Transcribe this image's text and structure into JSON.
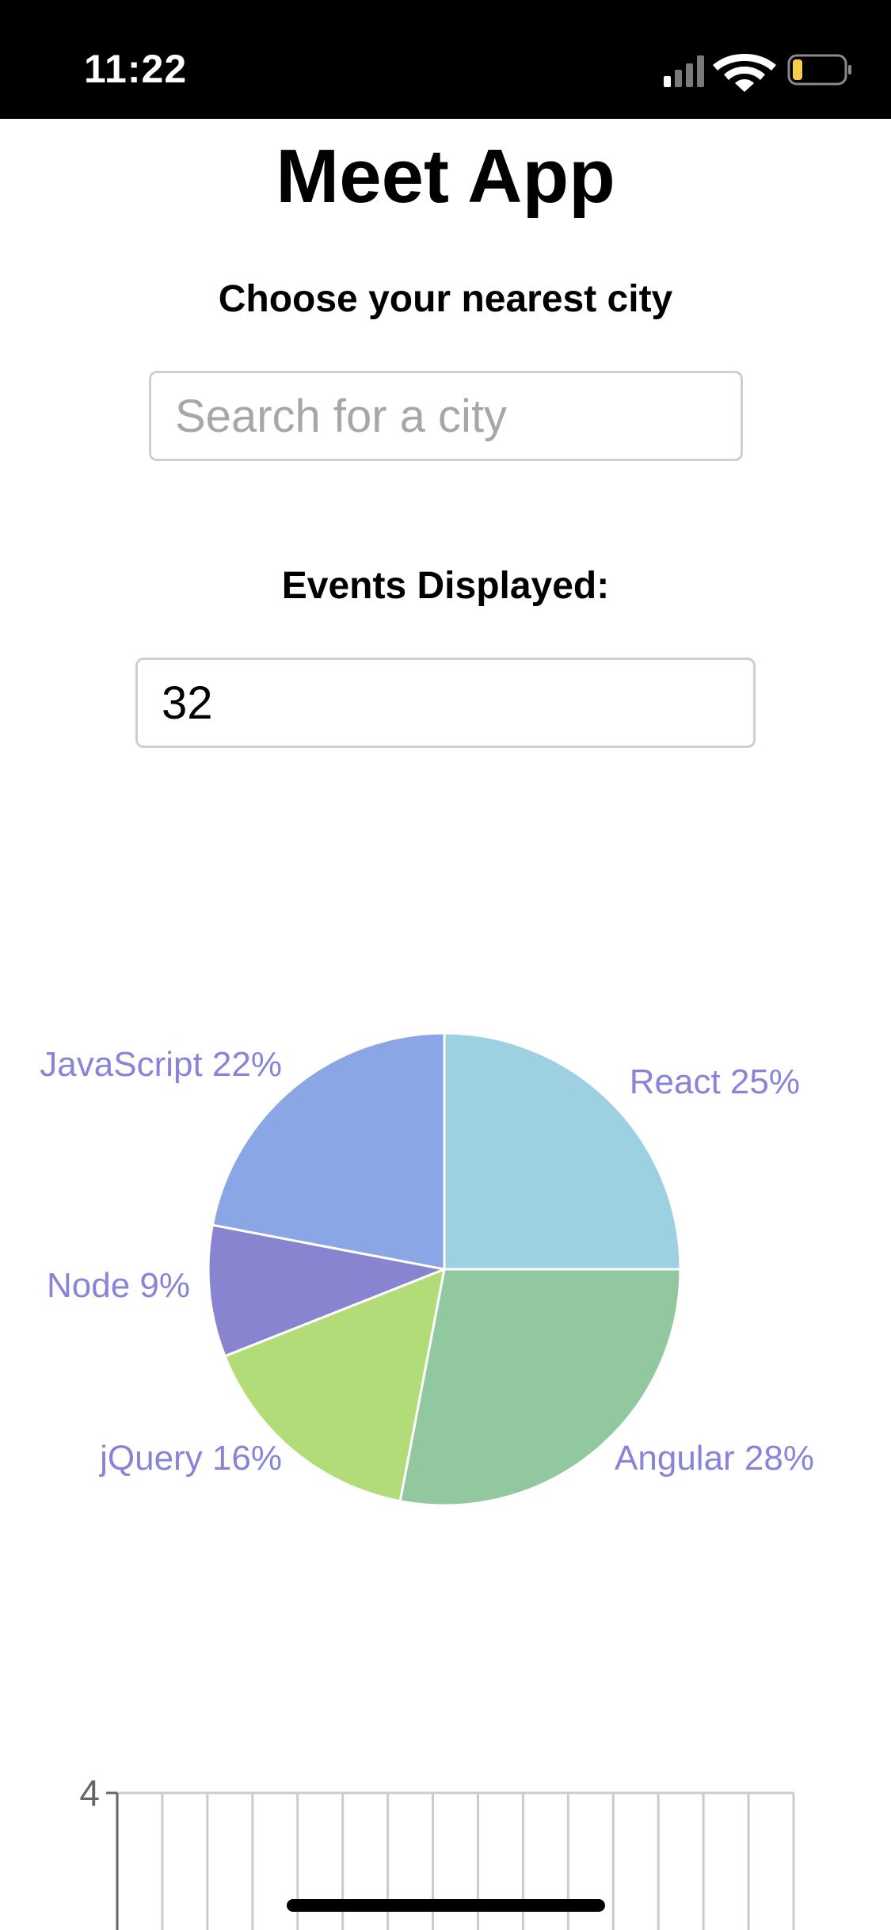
{
  "status_bar": {
    "time": "11:22",
    "icons": [
      "cellular-signal-icon",
      "wifi-icon",
      "battery-low-icon"
    ],
    "battery_color": "#f7ce46"
  },
  "app": {
    "title": "Meet App"
  },
  "city_search": {
    "label": "Choose your nearest city",
    "placeholder": "Search for a city",
    "value": ""
  },
  "events_count": {
    "label": "Events Displayed:",
    "value": "32"
  },
  "chart_data": [
    {
      "type": "pie",
      "label_color": "#8884d8",
      "slices": [
        {
          "label": "React",
          "value": 25,
          "display": "React 25%",
          "color": "#9dd0e0"
        },
        {
          "label": "Angular",
          "value": 28,
          "display": "Angular 28%",
          "color": "#91c89f"
        },
        {
          "label": "jQuery",
          "value": 16,
          "display": "jQuery 16%",
          "color": "#b2dc77"
        },
        {
          "label": "Node",
          "value": 9,
          "display": "Node 9%",
          "color": "#8884d0"
        },
        {
          "label": "JavaScript",
          "value": 22,
          "display": "JavaScript 22%",
          "color": "#8aa6e4"
        }
      ]
    },
    {
      "type": "scatter",
      "ylim_visible_max": 4,
      "y_tick_labels": [
        "4"
      ],
      "grid": true,
      "x_gridline_count": 15
    }
  ]
}
